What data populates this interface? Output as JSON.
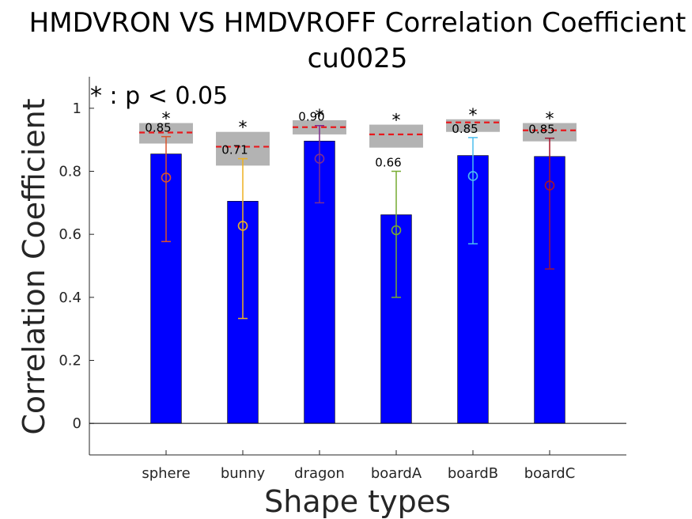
{
  "chart_data": {
    "type": "bar",
    "title": "HMDVRON VS HMDVROFF Correlation Coefficient",
    "subtitle": "cu0025",
    "xlabel": "Shape types",
    "ylabel": "Correlation Coefficient",
    "annotation": "* : p < 0.05",
    "ylim": [
      -0.1,
      1.1
    ],
    "yticks": [
      0,
      0.2,
      0.4,
      0.6,
      0.8,
      1
    ],
    "ytick_labels": [
      "0",
      "0.2",
      "0.4",
      "0.6",
      "0.8",
      "1"
    ],
    "grid": false,
    "bar_color": "#0000ff",
    "baseline_color": "#000000",
    "threshold_color": "#e8191d",
    "band_color": "#b3b3b3",
    "categories": [
      "sphere",
      "bunny",
      "dragon",
      "boardA",
      "boardB",
      "boardC"
    ],
    "values": [
      0.855,
      0.705,
      0.896,
      0.662,
      0.85,
      0.847
    ],
    "value_labels": [
      "0.85",
      "0.71",
      "0.90",
      "0.66",
      "0.85",
      "0.85"
    ],
    "markers": [
      {
        "mean": 0.78,
        "low": 0.577,
        "high": 0.91,
        "color": "#d9522b"
      },
      {
        "mean": 0.627,
        "low": 0.333,
        "high": 0.84,
        "color": "#edb120"
      },
      {
        "mean": 0.84,
        "low": 0.7,
        "high": 0.945,
        "color": "#7e2f8e"
      },
      {
        "mean": 0.613,
        "low": 0.4,
        "high": 0.8,
        "color": "#77ac30"
      },
      {
        "mean": 0.785,
        "low": 0.57,
        "high": 0.907,
        "color": "#4dbeee"
      },
      {
        "mean": 0.755,
        "low": 0.49,
        "high": 0.905,
        "color": "#a2142f"
      }
    ],
    "thresholds": [
      {
        "value": 0.923,
        "band_low": 0.888,
        "band_high": 0.953
      },
      {
        "value": 0.878,
        "band_low": 0.818,
        "band_high": 0.925
      },
      {
        "value": 0.94,
        "band_low": 0.917,
        "band_high": 0.962
      },
      {
        "value": 0.917,
        "band_low": 0.875,
        "band_high": 0.948
      },
      {
        "value": 0.955,
        "band_low": 0.925,
        "band_high": 0.965
      },
      {
        "value": 0.93,
        "band_low": 0.895,
        "band_high": 0.953
      }
    ],
    "significance": [
      "*",
      "*",
      "*",
      "*",
      "*",
      "*"
    ]
  }
}
